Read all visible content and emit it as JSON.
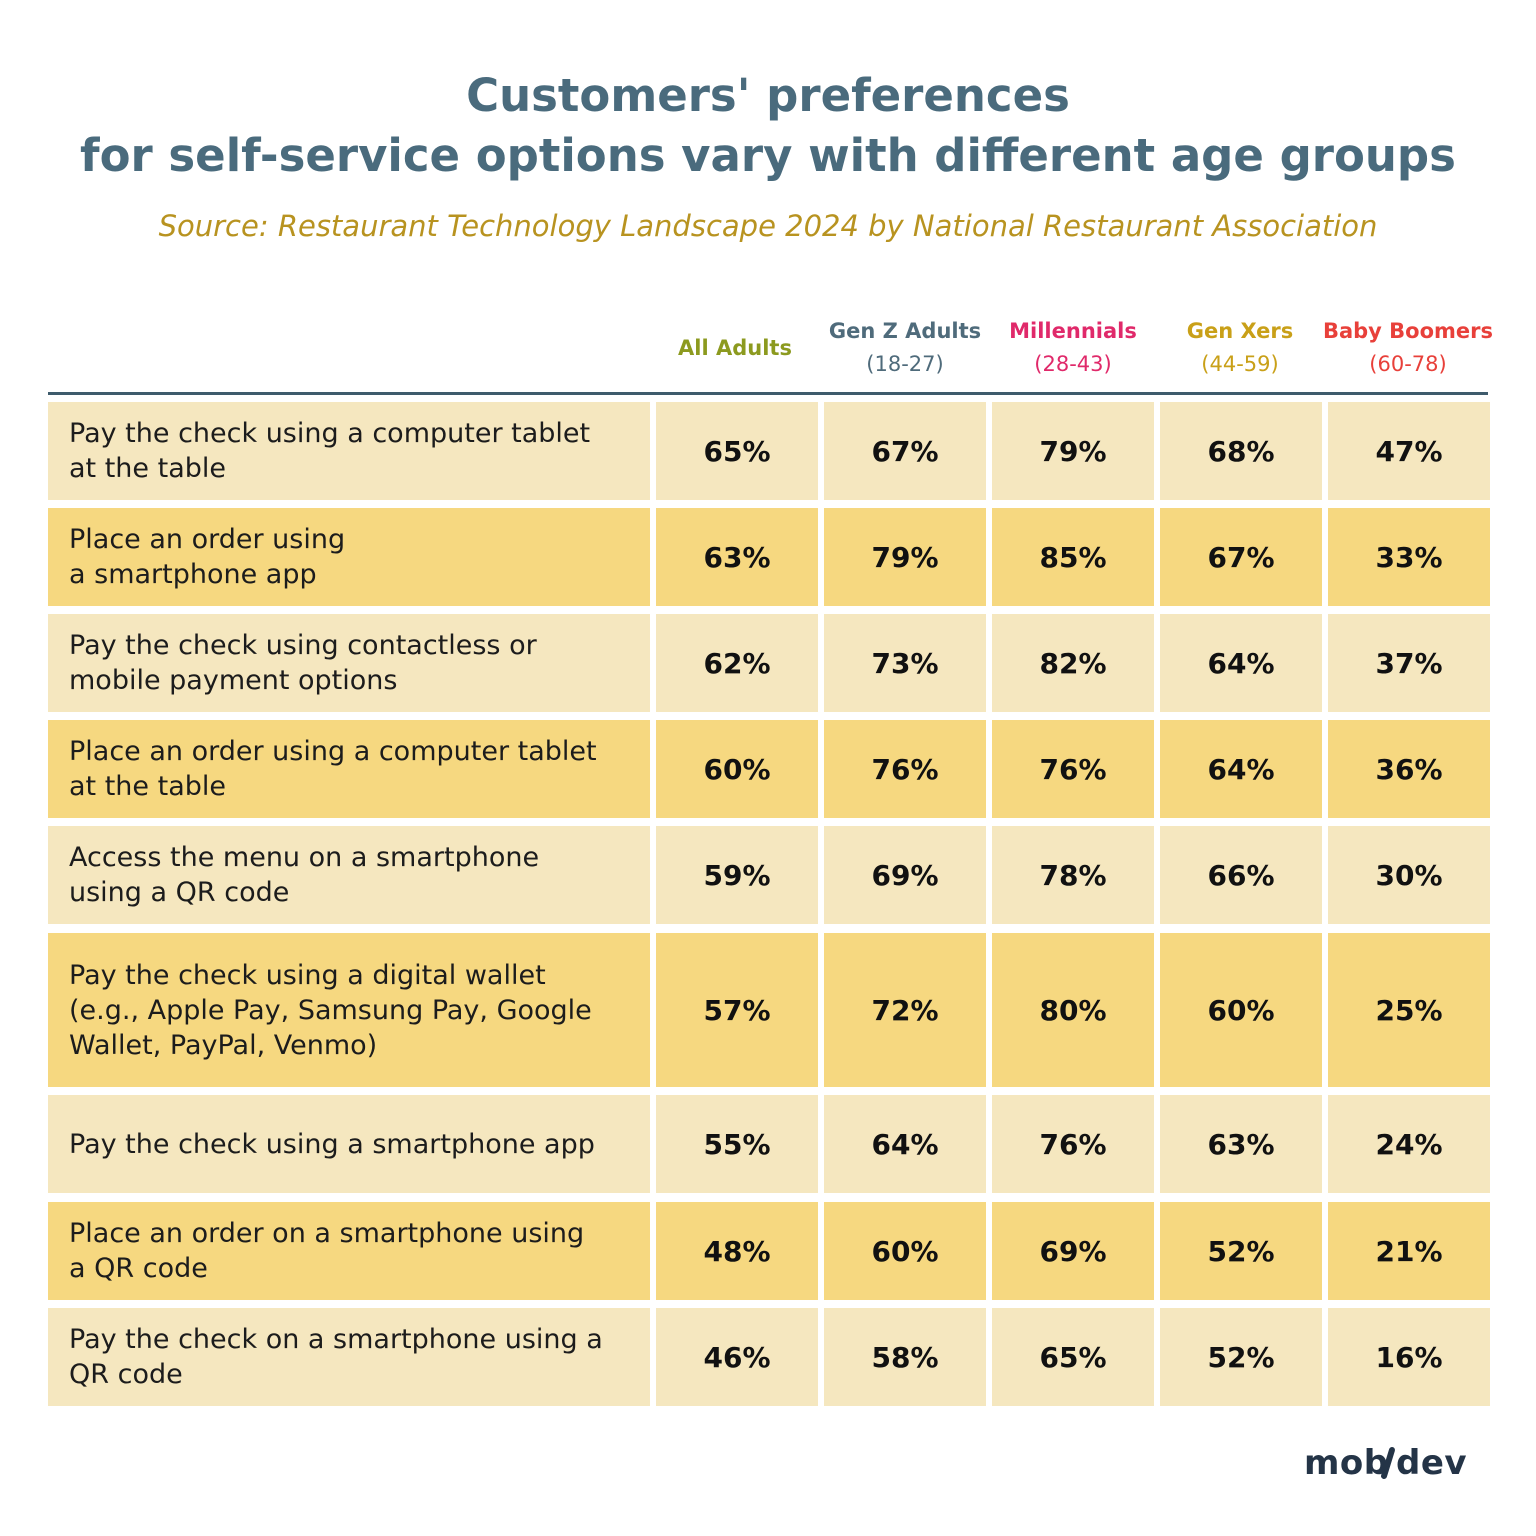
{
  "chart_data": {
    "type": "table",
    "title_lines": [
      "Customers' preferences",
      "for self-service options vary with different age groups"
    ],
    "subtitle": "Source: Restaurant Technology Landscape 2024 by National Restaurant Association",
    "columns": [
      {
        "name": "All Adults",
        "sub": "",
        "color": "#8c9a1f"
      },
      {
        "name": "Gen Z Adults",
        "sub": "(18-27)",
        "color": "#4f6b7b"
      },
      {
        "name": "Millennials",
        "sub": "(28-43)",
        "color": "#e0296a"
      },
      {
        "name": "Gen Xers",
        "sub": "(44-59)",
        "color": "#c9a018"
      },
      {
        "name": "Baby Boomers",
        "sub": "(60-78)",
        "color": "#e8403a"
      }
    ],
    "rows": [
      {
        "lines": [
          "Pay the check using a computer tablet",
          "at the table"
        ],
        "values": [
          "65%",
          "67%",
          "79%",
          "68%",
          "47%"
        ]
      },
      {
        "lines": [
          "Place an order using",
          "a smartphone app"
        ],
        "values": [
          "63%",
          "79%",
          "85%",
          "67%",
          "33%"
        ]
      },
      {
        "lines": [
          "Pay the check using contactless or",
          "mobile payment options"
        ],
        "values": [
          "62%",
          "73%",
          "82%",
          "64%",
          "37%"
        ]
      },
      {
        "lines": [
          "Place an order using a computer tablet",
          "at the table"
        ],
        "values": [
          "60%",
          "76%",
          "76%",
          "64%",
          "36%"
        ]
      },
      {
        "lines": [
          "Access the menu on a smartphone",
          "using a QR code"
        ],
        "values": [
          "59%",
          "69%",
          "78%",
          "66%",
          "30%"
        ]
      },
      {
        "lines": [
          "Pay the check using a digital wallet",
          "(e.g., Apple Pay, Samsung Pay, Google",
          "Wallet, PayPal, Venmo)"
        ],
        "values": [
          "57%",
          "72%",
          "80%",
          "60%",
          "25%"
        ]
      },
      {
        "lines": [
          "Pay the check using a smartphone app"
        ],
        "values": [
          "55%",
          "64%",
          "76%",
          "63%",
          "24%"
        ]
      },
      {
        "lines": [
          "Place an order on a smartphone using",
          "a QR code"
        ],
        "values": [
          "48%",
          "60%",
          "69%",
          "52%",
          "21%"
        ]
      },
      {
        "lines": [
          "Pay the check on a smartphone using a",
          "QR code"
        ],
        "values": [
          "46%",
          "58%",
          "65%",
          "52%",
          "16%"
        ]
      }
    ]
  },
  "colors": {
    "title": "#4a6b7d",
    "source": "#b89320",
    "row_light": "#f5e7bf",
    "row_dark": "#f6d880",
    "rule": "#3e5b6c"
  },
  "logo": {
    "text": "mob/dev"
  }
}
